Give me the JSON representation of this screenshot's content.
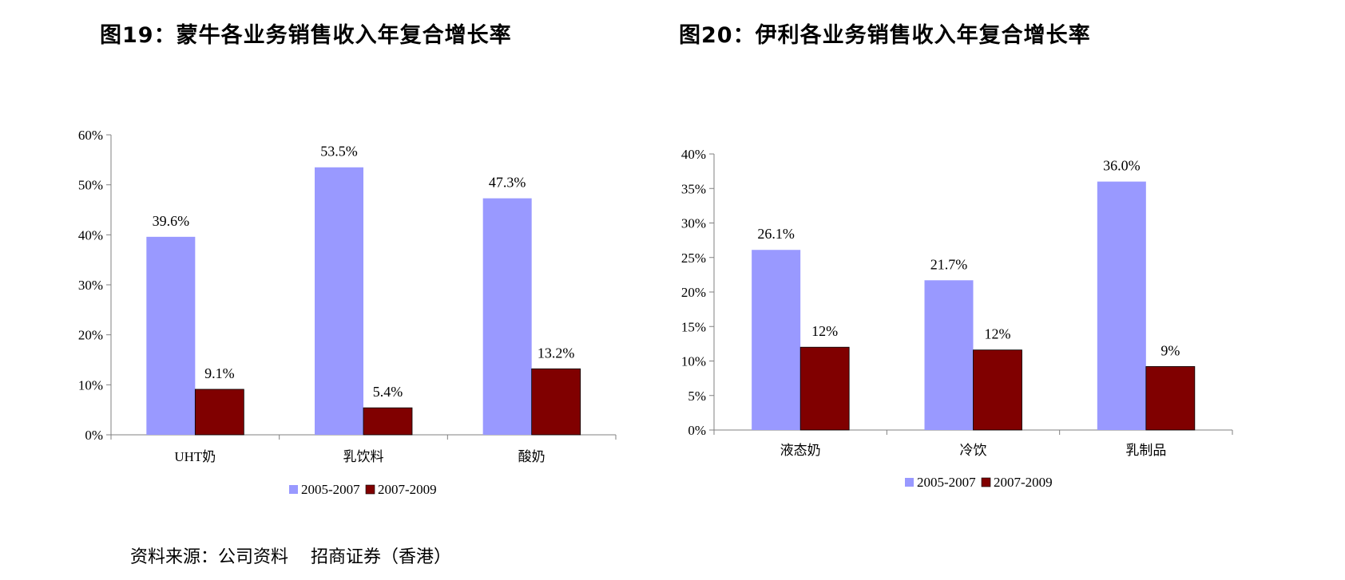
{
  "titles": {
    "left": "图19：蒙牛各业务销售收入年复合增长率",
    "right": "图20：伊利各业务销售收入年复合增长率"
  },
  "source": "资料来源：公司资料    招商证券（香港）",
  "colors": {
    "series1": "#9999ff",
    "series2": "#800000",
    "axis": "#808080"
  },
  "chart_data": [
    {
      "type": "bar",
      "categories": [
        "UHT奶",
        "乳饮料",
        "酸奶"
      ],
      "series": [
        {
          "name": "2005-2007",
          "values": [
            39.6,
            53.5,
            47.3
          ],
          "labels": [
            "39.6%",
            "53.5%",
            "47.3%"
          ]
        },
        {
          "name": "2007-2009",
          "values": [
            9.1,
            5.4,
            13.2
          ],
          "labels": [
            "9.1%",
            "5.4%",
            "13.2%"
          ]
        }
      ],
      "ylim": [
        0,
        60
      ],
      "yticks": [
        0,
        10,
        20,
        30,
        40,
        50,
        60
      ],
      "ytick_labels": [
        "0%",
        "10%",
        "20%",
        "30%",
        "40%",
        "50%",
        "60%"
      ],
      "legend": "bottom"
    },
    {
      "type": "bar",
      "categories": [
        "液态奶",
        "冷饮",
        "乳制品"
      ],
      "series": [
        {
          "name": "2005-2007",
          "values": [
            26.1,
            21.7,
            36.0
          ],
          "labels": [
            "26.1%",
            "21.7%",
            "36.0%"
          ]
        },
        {
          "name": "2007-2009",
          "values": [
            12,
            11.6,
            9.2
          ],
          "labels": [
            "12%",
            "12%",
            "9%"
          ]
        }
      ],
      "ylim": [
        0,
        40
      ],
      "yticks": [
        0,
        5,
        10,
        15,
        20,
        25,
        30,
        35,
        40
      ],
      "ytick_labels": [
        "0%",
        "5%",
        "10%",
        "15%",
        "20%",
        "25%",
        "30%",
        "35%",
        "40%"
      ],
      "legend": "bottom"
    }
  ]
}
